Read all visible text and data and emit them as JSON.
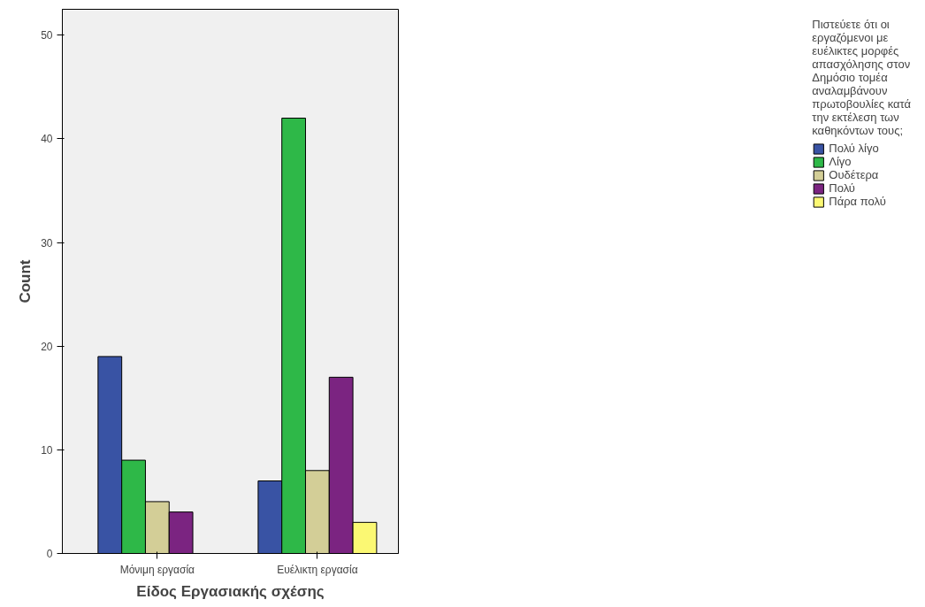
{
  "chart_data": {
    "type": "bar",
    "xlabel": "Είδος Εργασιακής σχέσης",
    "ylabel": "Count",
    "legend_title": "Πιστεύετε ότι οι εργαζόμενοι με ευέλικτες μορφές απασχόλησης στον Δημόσιο τομέα αναλαμβάνουν πρωτοβουλίες κατά την εκτέλεση των καθηκόντων τους;",
    "categories": [
      "Μόνιμη εργασία",
      "Ευέλικτη εργασία"
    ],
    "series": [
      {
        "name": "Πολύ λίγο",
        "color": "#3953a4",
        "values": [
          19,
          7
        ]
      },
      {
        "name": "Λίγο",
        "color": "#2eb848",
        "values": [
          9,
          42
        ]
      },
      {
        "name": "Ουδέτερα",
        "color": "#d3ce97",
        "values": [
          5,
          8
        ]
      },
      {
        "name": "Πολύ",
        "color": "#7b2481",
        "values": [
          4,
          17
        ]
      },
      {
        "name": "Πάρα πολύ",
        "color": "#fbf873",
        "values": [
          null,
          3
        ]
      }
    ],
    "ylim": [
      0,
      52.5
    ],
    "yticks": [
      0,
      10,
      20,
      30,
      40,
      50
    ],
    "grid": false,
    "legend": "right"
  }
}
